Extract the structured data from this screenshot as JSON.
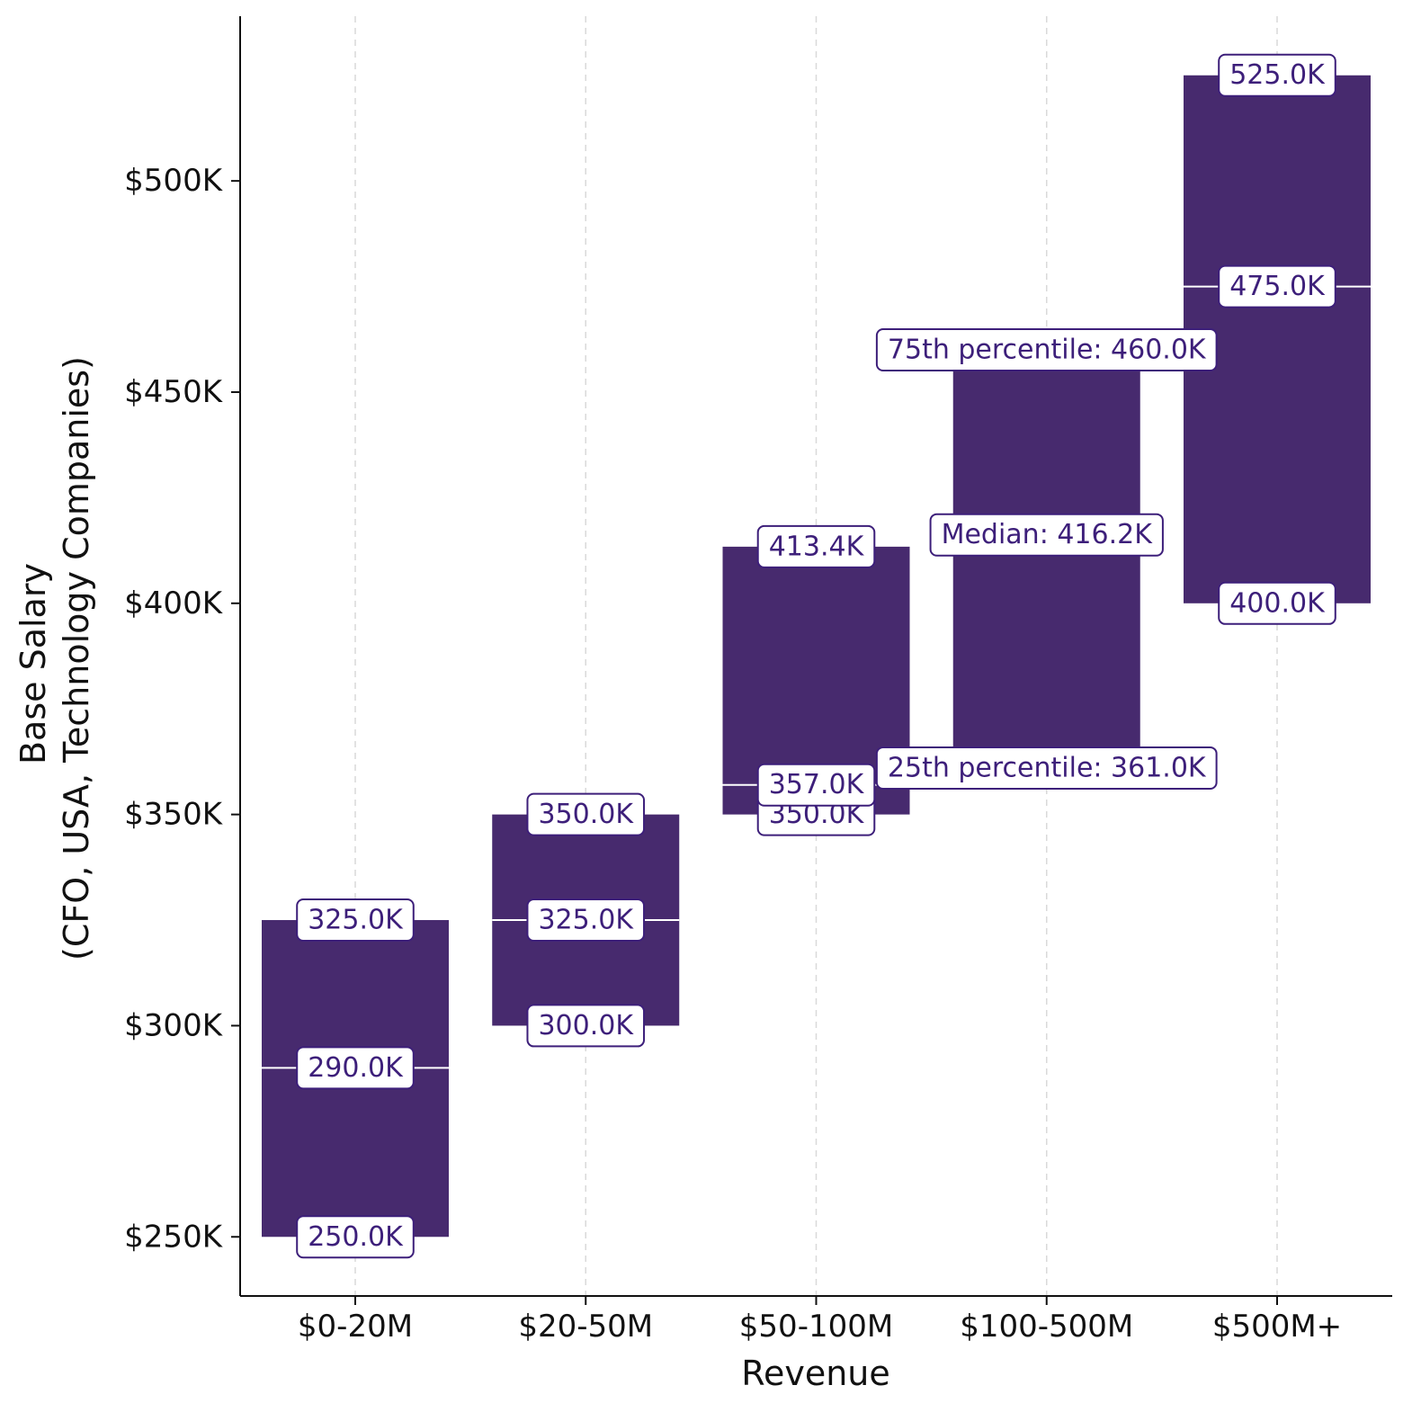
{
  "chart_data": {
    "type": "floating-range-bar",
    "xlabel": "Revenue",
    "ylabel_lines": [
      "Base Salary",
      "(CFO, USA, Technology Companies)"
    ],
    "ylim": [
      236000,
      539000
    ],
    "yticks": [
      250000,
      300000,
      350000,
      400000,
      450000,
      500000
    ],
    "ytick_labels": [
      "$250K",
      "$300K",
      "$350K",
      "$400K",
      "$450K",
      "$500K"
    ],
    "categories": [
      "$0-20M",
      "$20-50M",
      "$50-100M",
      "$100-500M",
      "$500M+"
    ],
    "p25": [
      250000,
      300000,
      350000,
      361000,
      400000
    ],
    "median": [
      290000,
      325000,
      357000,
      416200,
      475000
    ],
    "p75": [
      325000,
      350000,
      413400,
      460000,
      525000
    ],
    "p25_labels": [
      "250.0K",
      "300.0K",
      "350.0K",
      "25th percentile: 361.0K",
      "400.0K"
    ],
    "median_labels": [
      "290.0K",
      "325.0K",
      "357.0K",
      "Median: 416.2K",
      "475.0K"
    ],
    "p75_labels": [
      "325.0K",
      "350.0K",
      "413.4K",
      "75th percentile: 460.0K",
      "525.0K"
    ],
    "colors": {
      "bar": "#472a6e",
      "label_text": "#3d1f7a",
      "label_border": "#3d1f7a",
      "median_line": "#ffffff",
      "grid": "#d9d9d9",
      "axis": "#111111"
    }
  }
}
